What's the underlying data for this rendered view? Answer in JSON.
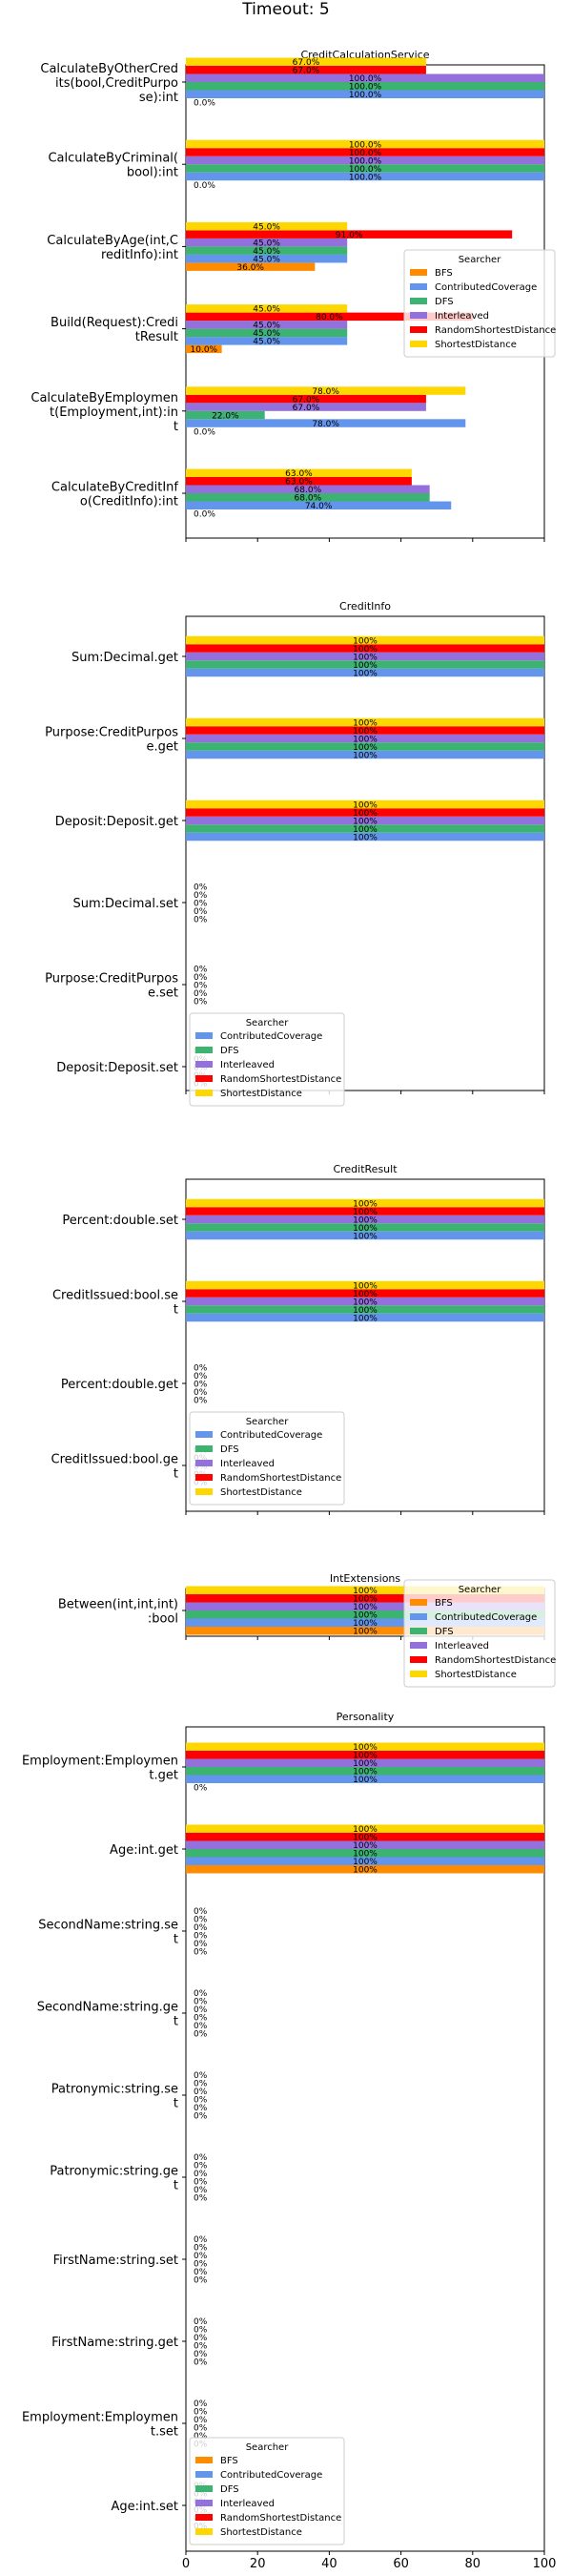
{
  "suptitle": "Timeout: 5",
  "colors": {
    "BFS": "#ff8c00",
    "ContributedCoverage": "#6495ed",
    "DFS": "#3cb371",
    "Interleaved": "#9370db",
    "RandomShortestDistance": "#ff0000",
    "ShortestDistance": "#ffd700"
  },
  "legend_title": "Searcher",
  "x_ticks": [
    "0",
    "20",
    "40",
    "60",
    "80",
    "100"
  ],
  "chart_data": [
    {
      "type": "bar",
      "orientation": "horizontal",
      "title": "CreditCalculationService",
      "xlim": [
        0,
        100
      ],
      "series_order": [
        "BFS",
        "ContributedCoverage",
        "DFS",
        "Interleaved",
        "RandomShortestDistance",
        "ShortestDistance"
      ],
      "legend": {
        "placement": "right",
        "entries": [
          "BFS",
          "ContributedCoverage",
          "DFS",
          "Interleaved",
          "RandomShortestDistance",
          "ShortestDistance"
        ]
      },
      "categories": [
        {
          "label": [
            "CalculateByOtherCred",
            "its(bool,CreditPurpo",
            "se):int"
          ],
          "values": {
            "BFS": 0.0,
            "ContributedCoverage": 100.0,
            "DFS": 100.0,
            "Interleaved": 100.0,
            "RandomShortestDistance": 67.0,
            "ShortestDistance": 67.0
          }
        },
        {
          "label": [
            "CalculateByCriminal(",
            "bool):int"
          ],
          "values": {
            "BFS": 0.0,
            "ContributedCoverage": 100.0,
            "DFS": 100.0,
            "Interleaved": 100.0,
            "RandomShortestDistance": 100.0,
            "ShortestDistance": 100.0
          }
        },
        {
          "label": [
            "CalculateByAge(int,C",
            "reditInfo):int"
          ],
          "values": {
            "BFS": 36.0,
            "ContributedCoverage": 45.0,
            "DFS": 45.0,
            "Interleaved": 45.0,
            "RandomShortestDistance": 91.0,
            "ShortestDistance": 45.0
          }
        },
        {
          "label": [
            "Build(Request):Credi",
            "tResult"
          ],
          "values": {
            "BFS": 10.0,
            "ContributedCoverage": 45.0,
            "DFS": 45.0,
            "Interleaved": 45.0,
            "RandomShortestDistance": 80.0,
            "ShortestDistance": 45.0
          }
        },
        {
          "label": [
            "CalculateByEmploymen",
            "t(Employment,int):in",
            "t"
          ],
          "values": {
            "BFS": 0.0,
            "ContributedCoverage": 78.0,
            "DFS": 22.0,
            "Interleaved": 67.0,
            "RandomShortestDistance": 67.0,
            "ShortestDistance": 78.0
          }
        },
        {
          "label": [
            "CalculateByCreditInf",
            "o(CreditInfo):int"
          ],
          "values": {
            "BFS": 0.0,
            "ContributedCoverage": 74.0,
            "DFS": 68.0,
            "Interleaved": 68.0,
            "RandomShortestDistance": 63.0,
            "ShortestDistance": 63.0
          }
        }
      ]
    },
    {
      "type": "bar",
      "orientation": "horizontal",
      "title": "CreditInfo",
      "xlim": [
        0,
        100
      ],
      "series_order": [
        "ContributedCoverage",
        "DFS",
        "Interleaved",
        "RandomShortestDistance",
        "ShortestDistance"
      ],
      "legend": {
        "placement": "lower-left",
        "entries": [
          "ContributedCoverage",
          "DFS",
          "Interleaved",
          "RandomShortestDistance",
          "ShortestDistance"
        ]
      },
      "categories": [
        {
          "label": [
            "Sum:Decimal.get"
          ],
          "values": {
            "ContributedCoverage": 100,
            "DFS": 100,
            "Interleaved": 100,
            "RandomShortestDistance": 100,
            "ShortestDistance": 100
          }
        },
        {
          "label": [
            "Purpose:CreditPurpos",
            "e.get"
          ],
          "values": {
            "ContributedCoverage": 100,
            "DFS": 100,
            "Interleaved": 100,
            "RandomShortestDistance": 100,
            "ShortestDistance": 100
          }
        },
        {
          "label": [
            "Deposit:Deposit.get"
          ],
          "values": {
            "ContributedCoverage": 100,
            "DFS": 100,
            "Interleaved": 100,
            "RandomShortestDistance": 100,
            "ShortestDistance": 100
          }
        },
        {
          "label": [
            "Sum:Decimal.set"
          ],
          "values": {
            "ContributedCoverage": 0,
            "DFS": 0,
            "Interleaved": 0,
            "RandomShortestDistance": 0,
            "ShortestDistance": 0
          }
        },
        {
          "label": [
            "Purpose:CreditPurpos",
            "e.set"
          ],
          "values": {
            "ContributedCoverage": 0,
            "DFS": 0,
            "Interleaved": 0,
            "RandomShortestDistance": 0,
            "ShortestDistance": 0
          }
        },
        {
          "label": [
            "Deposit:Deposit.set"
          ],
          "values": {
            "ContributedCoverage": 0,
            "DFS": 0,
            "Interleaved": 0,
            "RandomShortestDistance": 0,
            "ShortestDistance": 0
          }
        }
      ]
    },
    {
      "type": "bar",
      "orientation": "horizontal",
      "title": "CreditResult",
      "xlim": [
        0,
        100
      ],
      "series_order": [
        "ContributedCoverage",
        "DFS",
        "Interleaved",
        "RandomShortestDistance",
        "ShortestDistance"
      ],
      "legend": {
        "placement": "lower-left",
        "entries": [
          "ContributedCoverage",
          "DFS",
          "Interleaved",
          "RandomShortestDistance",
          "ShortestDistance"
        ]
      },
      "categories": [
        {
          "label": [
            "Percent:double.set"
          ],
          "values": {
            "ContributedCoverage": 100,
            "DFS": 100,
            "Interleaved": 100,
            "RandomShortestDistance": 100,
            "ShortestDistance": 100
          }
        },
        {
          "label": [
            "CreditIssued:bool.se",
            "t"
          ],
          "values": {
            "ContributedCoverage": 100,
            "DFS": 100,
            "Interleaved": 100,
            "RandomShortestDistance": 100,
            "ShortestDistance": 100
          }
        },
        {
          "label": [
            "Percent:double.get"
          ],
          "values": {
            "ContributedCoverage": 0,
            "DFS": 0,
            "Interleaved": 0,
            "RandomShortestDistance": 0,
            "ShortestDistance": 0
          }
        },
        {
          "label": [
            "CreditIssued:bool.ge",
            "t"
          ],
          "values": {
            "ContributedCoverage": 0,
            "DFS": 0,
            "Interleaved": 0,
            "RandomShortestDistance": 0,
            "ShortestDistance": 0
          }
        }
      ]
    },
    {
      "type": "bar",
      "orientation": "horizontal",
      "title": "IntExtensions",
      "xlim": [
        0,
        100
      ],
      "series_order": [
        "BFS",
        "ContributedCoverage",
        "DFS",
        "Interleaved",
        "RandomShortestDistance",
        "ShortestDistance"
      ],
      "legend": {
        "placement": "right",
        "entries": [
          "BFS",
          "ContributedCoverage",
          "DFS",
          "Interleaved",
          "RandomShortestDistance",
          "ShortestDistance"
        ]
      },
      "categories": [
        {
          "label": [
            "Between(int,int,int)",
            ":bool"
          ],
          "values": {
            "BFS": 100,
            "ContributedCoverage": 100,
            "DFS": 100,
            "Interleaved": 100,
            "RandomShortestDistance": 100,
            "ShortestDistance": 100
          }
        }
      ]
    },
    {
      "type": "bar",
      "orientation": "horizontal",
      "title": "Personality",
      "xlim": [
        0,
        100
      ],
      "series_order": [
        "BFS",
        "ContributedCoverage",
        "DFS",
        "Interleaved",
        "RandomShortestDistance",
        "ShortestDistance"
      ],
      "legend": {
        "placement": "lower-left",
        "entries": [
          "BFS",
          "ContributedCoverage",
          "DFS",
          "Interleaved",
          "RandomShortestDistance",
          "ShortestDistance"
        ]
      },
      "categories": [
        {
          "label": [
            "Employment:Employmen",
            "t.get"
          ],
          "values": {
            "BFS": 0,
            "ContributedCoverage": 100,
            "DFS": 100,
            "Interleaved": 100,
            "RandomShortestDistance": 100,
            "ShortestDistance": 100
          }
        },
        {
          "label": [
            "Age:int.get"
          ],
          "values": {
            "BFS": 100,
            "ContributedCoverage": 100,
            "DFS": 100,
            "Interleaved": 100,
            "RandomShortestDistance": 100,
            "ShortestDistance": 100
          }
        },
        {
          "label": [
            "SecondName:string.se",
            "t"
          ],
          "values": {
            "BFS": 0,
            "ContributedCoverage": 0,
            "DFS": 0,
            "Interleaved": 0,
            "RandomShortestDistance": 0,
            "ShortestDistance": 0
          }
        },
        {
          "label": [
            "SecondName:string.ge",
            "t"
          ],
          "values": {
            "BFS": 0,
            "ContributedCoverage": 0,
            "DFS": 0,
            "Interleaved": 0,
            "RandomShortestDistance": 0,
            "ShortestDistance": 0
          }
        },
        {
          "label": [
            "Patronymic:string.se",
            "t"
          ],
          "values": {
            "BFS": 0,
            "ContributedCoverage": 0,
            "DFS": 0,
            "Interleaved": 0,
            "RandomShortestDistance": 0,
            "ShortestDistance": 0
          }
        },
        {
          "label": [
            "Patronymic:string.ge",
            "t"
          ],
          "values": {
            "BFS": 0,
            "ContributedCoverage": 0,
            "DFS": 0,
            "Interleaved": 0,
            "RandomShortestDistance": 0,
            "ShortestDistance": 0
          }
        },
        {
          "label": [
            "FirstName:string.set"
          ],
          "values": {
            "BFS": 0,
            "ContributedCoverage": 0,
            "DFS": 0,
            "Interleaved": 0,
            "RandomShortestDistance": 0,
            "ShortestDistance": 0
          }
        },
        {
          "label": [
            "FirstName:string.get"
          ],
          "values": {
            "BFS": 0,
            "ContributedCoverage": 0,
            "DFS": 0,
            "Interleaved": 0,
            "RandomShortestDistance": 0,
            "ShortestDistance": 0
          }
        },
        {
          "label": [
            "Employment:Employmen",
            "t.set"
          ],
          "values": {
            "BFS": 0,
            "ContributedCoverage": 0,
            "DFS": 0,
            "Interleaved": 0,
            "RandomShortestDistance": 0,
            "ShortestDistance": 0
          }
        },
        {
          "label": [
            "Age:int.set"
          ],
          "values": {
            "BFS": 0,
            "ContributedCoverage": 0,
            "DFS": 0,
            "Interleaved": 0,
            "RandomShortestDistance": 0,
            "ShortestDistance": 0
          }
        }
      ]
    }
  ]
}
